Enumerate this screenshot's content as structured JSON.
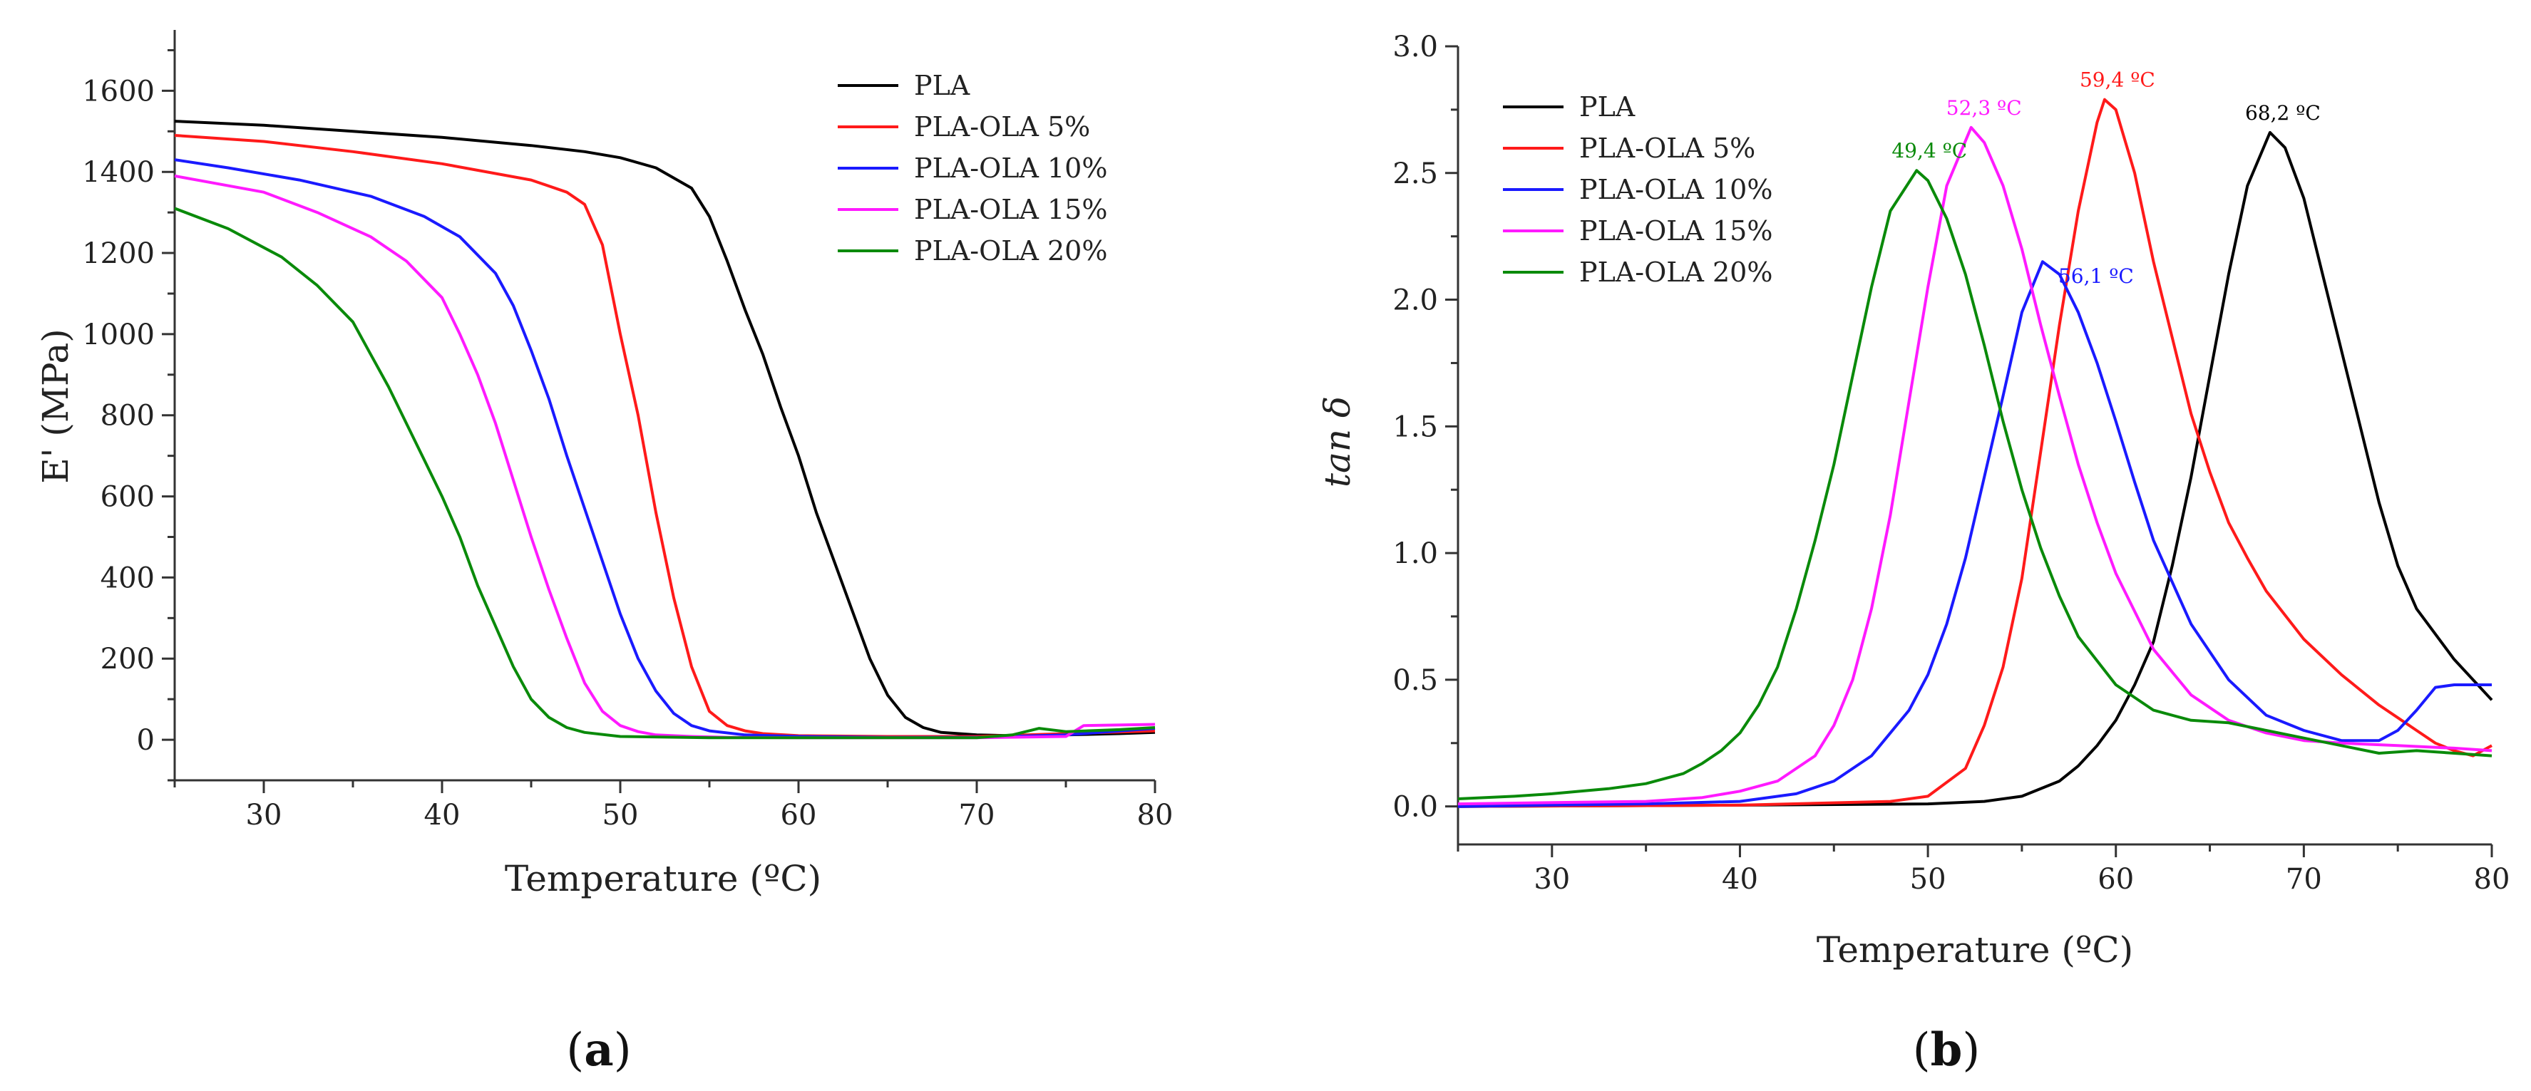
{
  "colors": {
    "PLA": "#000000",
    "PLA-OLA 5%": "#ff1a1a",
    "PLA-OLA 10%": "#1a1aff",
    "PLA-OLA 15%": "#ff1aff",
    "PLA-OLA 20%": "#0a8a0a"
  },
  "chart_data": [
    {
      "type": "line",
      "panel_label_parts": [
        "(",
        "a",
        ")"
      ],
      "xlabel": "Temperature (ºC)",
      "ylabel": "E' (MPa)",
      "xlim": [
        25,
        80
      ],
      "ylim": [
        -100,
        1750
      ],
      "xticks": [
        30,
        40,
        50,
        60,
        70,
        80
      ],
      "yticks": [
        0,
        200,
        400,
        600,
        800,
        1000,
        1200,
        1400,
        1600
      ],
      "legend_position": "top-right",
      "series": [
        {
          "name": "PLA",
          "x": [
            25,
            30,
            35,
            40,
            45,
            48,
            50,
            52,
            54,
            55,
            56,
            57,
            58,
            59,
            60,
            61,
            62,
            63,
            64,
            65,
            66,
            67,
            68,
            70,
            72,
            75,
            78,
            80
          ],
          "y": [
            1525,
            1515,
            1500,
            1485,
            1465,
            1450,
            1435,
            1410,
            1360,
            1290,
            1180,
            1060,
            950,
            820,
            700,
            560,
            440,
            320,
            200,
            110,
            55,
            30,
            18,
            12,
            10,
            12,
            15,
            18
          ]
        },
        {
          "name": "PLA-OLA 5%",
          "x": [
            25,
            30,
            35,
            40,
            45,
            47,
            48,
            49,
            50,
            51,
            52,
            53,
            54,
            55,
            56,
            57,
            58,
            60,
            65,
            70,
            75,
            80
          ],
          "y": [
            1490,
            1475,
            1450,
            1420,
            1380,
            1350,
            1320,
            1220,
            1000,
            800,
            560,
            350,
            180,
            70,
            35,
            22,
            15,
            10,
            8,
            8,
            15,
            22
          ]
        },
        {
          "name": "PLA-OLA 10%",
          "x": [
            25,
            28,
            32,
            36,
            39,
            41,
            43,
            44,
            45,
            46,
            47,
            48,
            49,
            50,
            51,
            52,
            53,
            54,
            55,
            57,
            60,
            65,
            70,
            75,
            80
          ],
          "y": [
            1430,
            1410,
            1380,
            1340,
            1290,
            1240,
            1150,
            1070,
            960,
            840,
            700,
            570,
            440,
            310,
            200,
            120,
            65,
            35,
            22,
            12,
            8,
            6,
            6,
            12,
            28
          ]
        },
        {
          "name": "PLA-OLA 15%",
          "x": [
            25,
            30,
            33,
            36,
            38,
            40,
            41,
            42,
            43,
            44,
            45,
            46,
            47,
            48,
            49,
            50,
            51,
            52,
            54,
            56,
            60,
            70,
            75,
            76,
            80
          ],
          "y": [
            1390,
            1350,
            1300,
            1240,
            1180,
            1090,
            1000,
            900,
            780,
            640,
            500,
            370,
            250,
            140,
            70,
            35,
            20,
            12,
            8,
            6,
            5,
            5,
            8,
            35,
            38
          ]
        },
        {
          "name": "PLA-OLA 20%",
          "x": [
            25,
            28,
            31,
            33,
            35,
            36,
            37,
            38,
            39,
            40,
            41,
            42,
            43,
            44,
            45,
            46,
            47,
            48,
            50,
            55,
            60,
            70,
            72,
            73.5,
            75,
            78,
            80
          ],
          "y": [
            1310,
            1260,
            1190,
            1120,
            1030,
            950,
            870,
            780,
            690,
            600,
            500,
            380,
            280,
            180,
            100,
            55,
            30,
            18,
            8,
            5,
            5,
            5,
            12,
            28,
            20,
            25,
            30
          ]
        }
      ]
    },
    {
      "type": "line",
      "panel_label_parts": [
        "(",
        "b",
        ")"
      ],
      "xlabel": "Temperature (ºC)",
      "ylabel": "tan δ",
      "xlim": [
        25,
        80
      ],
      "ylim": [
        -0.15,
        3.0
      ],
      "xticks": [
        30,
        40,
        50,
        60,
        70,
        80
      ],
      "yticks": [
        0.0,
        0.5,
        1.0,
        1.5,
        2.0,
        2.5,
        3.0
      ],
      "ytick_labels": [
        "0.0",
        "0.5",
        "1.0",
        "1.5",
        "2.0",
        "2.5",
        "3.0"
      ],
      "legend_position": "top-left",
      "series": [
        {
          "name": "PLA",
          "x": [
            25,
            40,
            50,
            53,
            55,
            57,
            58,
            59,
            60,
            61,
            62,
            63,
            64,
            65,
            66,
            67,
            68.2,
            69,
            70,
            71,
            72,
            73,
            74,
            75,
            76,
            78,
            80
          ],
          "y": [
            0.0,
            0.005,
            0.01,
            0.02,
            0.04,
            0.1,
            0.16,
            0.24,
            0.34,
            0.48,
            0.65,
            0.95,
            1.3,
            1.7,
            2.1,
            2.45,
            2.66,
            2.6,
            2.4,
            2.1,
            1.8,
            1.5,
            1.2,
            0.95,
            0.78,
            0.58,
            0.42
          ]
        },
        {
          "name": "PLA-OLA 5%",
          "x": [
            25,
            40,
            48,
            50,
            52,
            53,
            54,
            55,
            56,
            57,
            58,
            59,
            59.4,
            60,
            61,
            62,
            63,
            64,
            65,
            66,
            67,
            68,
            70,
            72,
            74,
            75,
            76,
            77,
            78,
            79,
            80
          ],
          "y": [
            0.0,
            0.005,
            0.02,
            0.04,
            0.15,
            0.32,
            0.55,
            0.9,
            1.4,
            1.9,
            2.35,
            2.7,
            2.79,
            2.75,
            2.5,
            2.15,
            1.85,
            1.55,
            1.32,
            1.12,
            0.98,
            0.85,
            0.66,
            0.52,
            0.4,
            0.35,
            0.3,
            0.25,
            0.22,
            0.2,
            0.24
          ]
        },
        {
          "name": "PLA-OLA 10%",
          "x": [
            25,
            35,
            40,
            43,
            45,
            47,
            49,
            50,
            51,
            52,
            53,
            54,
            55,
            56.1,
            57,
            58,
            59,
            60,
            61,
            62,
            64,
            66,
            68,
            70,
            72,
            74,
            75,
            76,
            77,
            78,
            80
          ],
          "y": [
            0.0,
            0.01,
            0.02,
            0.05,
            0.1,
            0.2,
            0.38,
            0.52,
            0.72,
            0.98,
            1.3,
            1.62,
            1.95,
            2.15,
            2.1,
            1.95,
            1.75,
            1.52,
            1.28,
            1.05,
            0.72,
            0.5,
            0.36,
            0.3,
            0.26,
            0.26,
            0.3,
            0.38,
            0.47,
            0.48,
            0.48
          ]
        },
        {
          "name": "PLA-OLA 15%",
          "x": [
            25,
            30,
            35,
            38,
            40,
            42,
            44,
            45,
            46,
            47,
            48,
            49,
            50,
            51,
            52.3,
            53,
            54,
            55,
            56,
            57,
            58,
            59,
            60,
            62,
            64,
            66,
            68,
            70,
            72,
            75,
            78,
            80
          ],
          "y": [
            0.01,
            0.015,
            0.02,
            0.035,
            0.06,
            0.1,
            0.2,
            0.32,
            0.5,
            0.78,
            1.15,
            1.6,
            2.05,
            2.45,
            2.68,
            2.62,
            2.45,
            2.2,
            1.9,
            1.62,
            1.35,
            1.12,
            0.92,
            0.62,
            0.44,
            0.34,
            0.29,
            0.26,
            0.25,
            0.24,
            0.23,
            0.22
          ]
        },
        {
          "name": "PLA-OLA 20%",
          "x": [
            25,
            28,
            30,
            33,
            35,
            37,
            38,
            39,
            40,
            41,
            42,
            43,
            44,
            45,
            46,
            47,
            48,
            49.4,
            50,
            51,
            52,
            53,
            54,
            55,
            56,
            57,
            58,
            60,
            62,
            64,
            66,
            68,
            70,
            72,
            74,
            76,
            78,
            80
          ],
          "y": [
            0.03,
            0.04,
            0.05,
            0.07,
            0.09,
            0.13,
            0.17,
            0.22,
            0.29,
            0.4,
            0.55,
            0.78,
            1.05,
            1.35,
            1.7,
            2.05,
            2.35,
            2.51,
            2.47,
            2.32,
            2.1,
            1.82,
            1.52,
            1.25,
            1.02,
            0.83,
            0.67,
            0.48,
            0.38,
            0.34,
            0.33,
            0.3,
            0.27,
            0.24,
            0.21,
            0.22,
            0.21,
            0.2
          ]
        }
      ],
      "annotations": [
        {
          "text": "68,2 ºC",
          "series": "PLA",
          "x": 68.2,
          "y": 2.66
        },
        {
          "text": "59,4 ºC",
          "series": "PLA-OLA 5%",
          "x": 59.4,
          "y": 2.79
        },
        {
          "text": "56,1 ºC",
          "series": "PLA-OLA 10%",
          "x": 56.1,
          "y": 2.15
        },
        {
          "text": "52,3 ºC",
          "series": "PLA-OLA 15%",
          "x": 52.3,
          "y": 2.68
        },
        {
          "text": "49,4 ºC",
          "series": "PLA-OLA 20%",
          "x": 49.4,
          "y": 2.51
        }
      ]
    }
  ]
}
